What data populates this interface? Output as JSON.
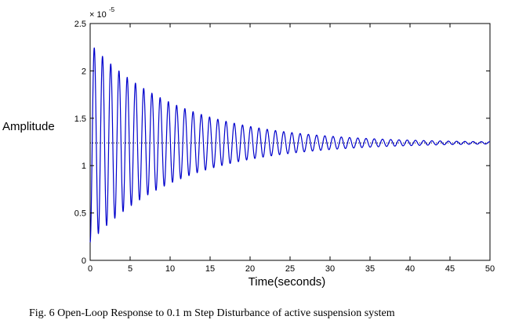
{
  "chart_data": {
    "type": "line",
    "title": "",
    "xlabel": "Time(seconds)",
    "ylabel": "Amplitude",
    "y_exponent_label": "× 10",
    "y_exponent": "-5",
    "xlim": [
      0,
      50
    ],
    "ylim": [
      0,
      2.5
    ],
    "xticks": [
      0,
      5,
      10,
      15,
      20,
      25,
      30,
      35,
      40,
      45,
      50
    ],
    "yticks": [
      0,
      0.5,
      1,
      1.5,
      2,
      2.5
    ],
    "xtick_labels": [
      "0",
      "5",
      "10",
      "15",
      "20",
      "25",
      "30",
      "35",
      "40",
      "45",
      "50"
    ],
    "ytick_labels": [
      "0",
      "0.5",
      "1",
      "1.5",
      "2",
      "2.5"
    ],
    "reference_line": {
      "value": 1.24,
      "style": "dotted"
    },
    "series": [
      {
        "name": "Open-loop response",
        "color": "#0000cc",
        "model": "damped_sinusoid",
        "final_value": 1.24,
        "initial_deviation": 1.05,
        "peak_value": 2.27,
        "first_trough": 0.19,
        "period": 1.03,
        "decay_rate": 0.09,
        "t_start": 0,
        "t_end": 50
      }
    ]
  },
  "caption": "Fig. 6 Open-Loop Response to 0.1 m Step Disturbance of active suspension system"
}
